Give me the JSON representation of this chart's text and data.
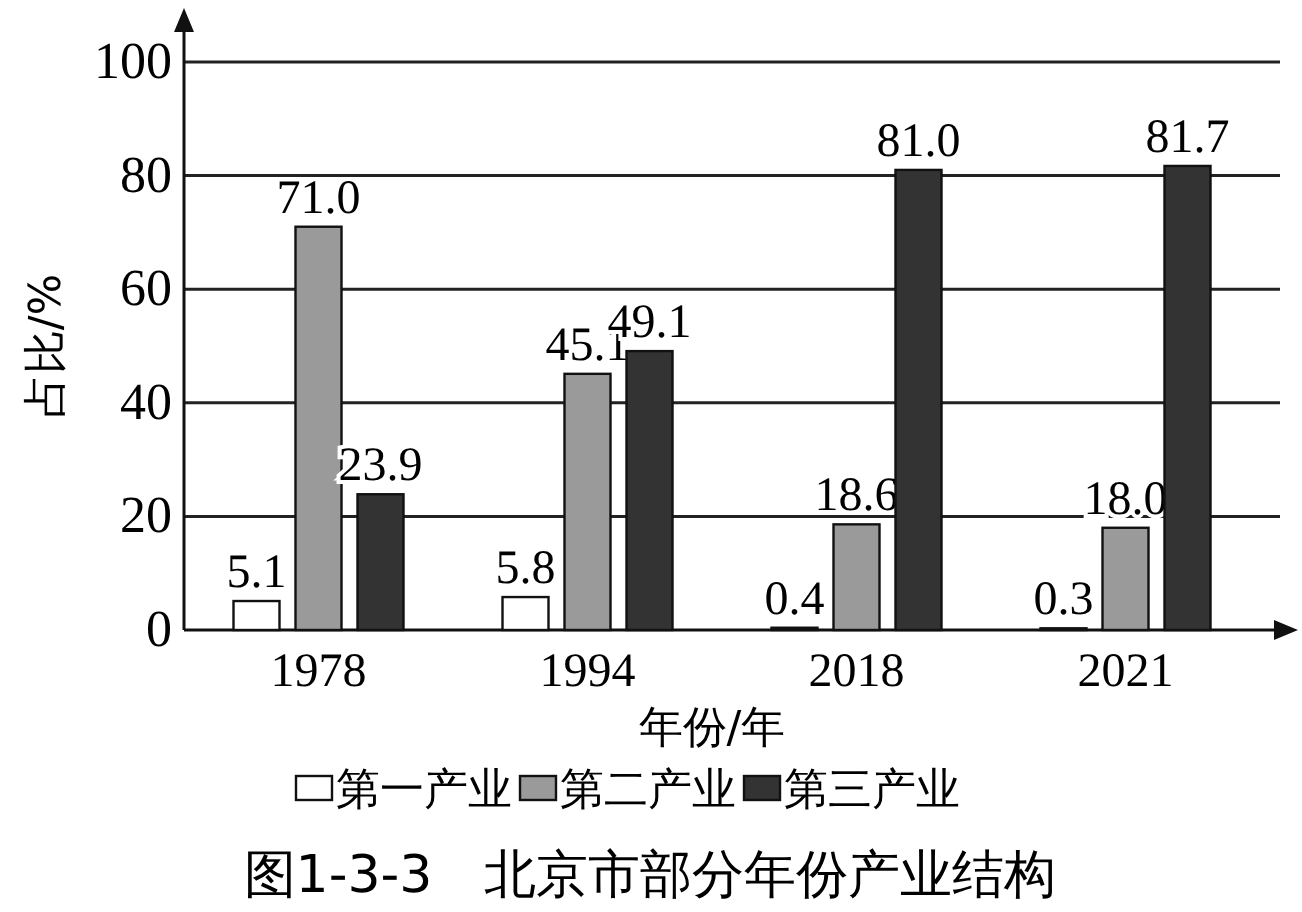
{
  "chart_data": {
    "type": "bar",
    "ylabel": "占比/%",
    "xlabel": "年份/年",
    "categories": [
      "1978",
      "1994",
      "2018",
      "2021"
    ],
    "series": [
      {
        "name": "第一产业",
        "color": "#ffffff",
        "values": [
          5.1,
          5.8,
          0.4,
          0.3
        ],
        "value_labels": [
          "5.1",
          "5.8",
          "0.4",
          "0.3"
        ]
      },
      {
        "name": "第二产业",
        "color": "#9a9a9a",
        "values": [
          71.0,
          45.1,
          18.6,
          18.0
        ],
        "value_labels": [
          "71.0",
          "45.1",
          "18.6",
          "18.0"
        ]
      },
      {
        "name": "第三产业",
        "color": "#333333",
        "values": [
          23.9,
          49.1,
          81.0,
          81.7
        ],
        "value_labels": [
          "23.9",
          "49.1",
          "81.0",
          "81.7"
        ]
      }
    ],
    "ylim": [
      0,
      100
    ],
    "yticks": [
      0,
      20,
      40,
      60,
      80,
      100
    ],
    "grid": "y",
    "legend": "bottom",
    "annotations": [
      "图1-3-3　北京市部分年份产业结构"
    ]
  }
}
